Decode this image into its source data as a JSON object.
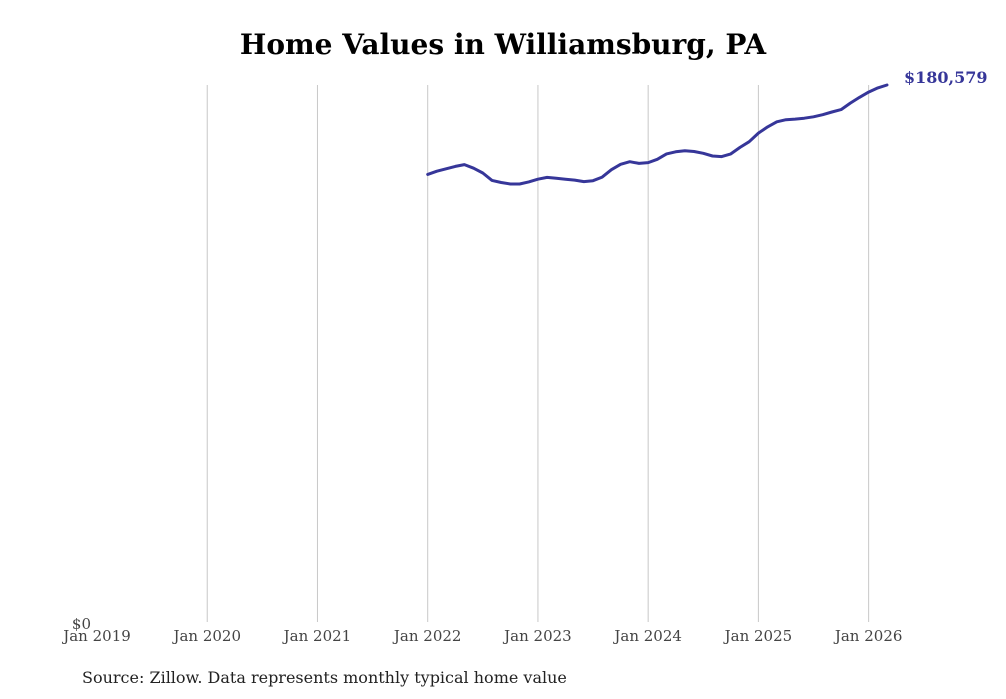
{
  "chart_data": {
    "type": "line",
    "title": "Home Values in Williamsburg, PA",
    "xlabel": "",
    "ylabel": "",
    "x_ticks": [
      "Jan 2019",
      "Jan 2020",
      "Jan 2021",
      "Jan 2022",
      "Jan 2023",
      "Jan 2024",
      "Jan 2025",
      "Jan 2026"
    ],
    "y_ticks": [
      "$0"
    ],
    "xlim": [
      "2019-01",
      "2026-03"
    ],
    "ylim": [
      0,
      180579
    ],
    "grid": "vertical",
    "legend": "none",
    "line_color": "#363699",
    "end_label": "$180,579",
    "series": [
      {
        "x": [
          "2022-01",
          "2022-02",
          "2022-03",
          "2022-04",
          "2022-05",
          "2022-06",
          "2022-07",
          "2022-08",
          "2022-09",
          "2022-10",
          "2022-11",
          "2022-12",
          "2023-01",
          "2023-02",
          "2023-03",
          "2023-04",
          "2023-05",
          "2023-06",
          "2023-07",
          "2023-08",
          "2023-09",
          "2023-10",
          "2023-11",
          "2023-12",
          "2024-01",
          "2024-02",
          "2024-03",
          "2024-04",
          "2024-05",
          "2024-06",
          "2024-07",
          "2024-08",
          "2024-09",
          "2024-10",
          "2024-11",
          "2024-12",
          "2025-01",
          "2025-02",
          "2025-03",
          "2025-04",
          "2025-05",
          "2025-06",
          "2025-07",
          "2025-08",
          "2025-09",
          "2025-10",
          "2025-11",
          "2025-12",
          "2026-01",
          "2026-02",
          "2026-03"
        ],
        "y": [
          150500,
          151600,
          152400,
          153200,
          153800,
          152600,
          151000,
          148500,
          147800,
          147300,
          147300,
          148000,
          148900,
          149500,
          149200,
          148900,
          148600,
          148100,
          148400,
          149600,
          152100,
          153900,
          154800,
          154200,
          154500,
          155600,
          157400,
          158100,
          158500,
          158200,
          157600,
          156700,
          156500,
          157400,
          159600,
          161500,
          164400,
          166500,
          168200,
          168900,
          169100,
          169400,
          169900,
          170600,
          171500,
          172300,
          174500,
          176400,
          178200,
          179600,
          180579
        ]
      }
    ],
    "source": "Source: Zillow. Data represents monthly typical home value"
  }
}
